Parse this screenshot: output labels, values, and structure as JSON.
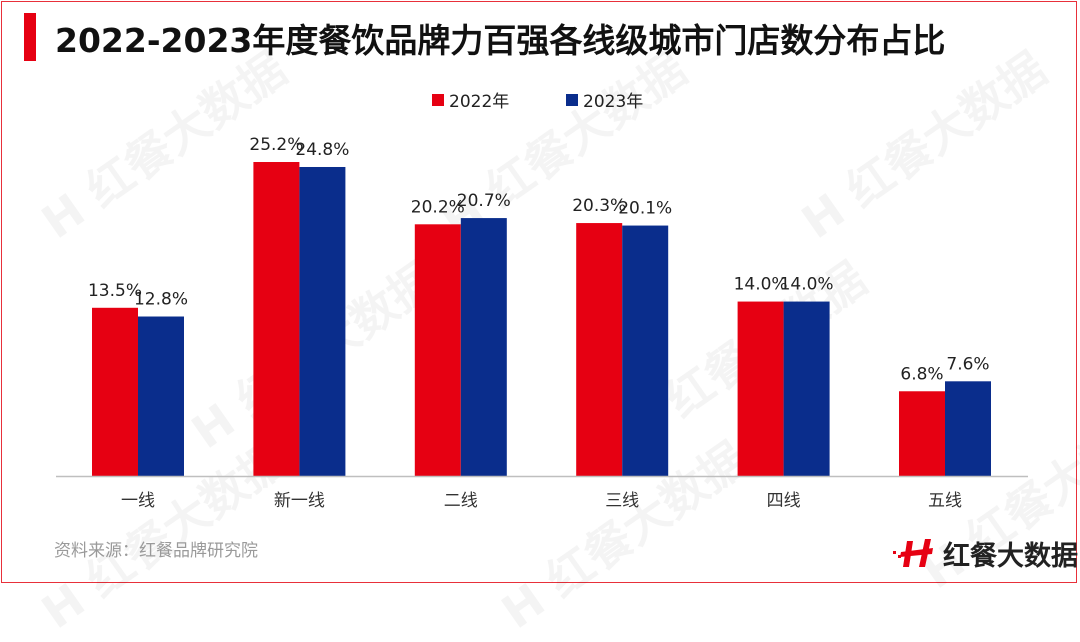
{
  "chart_data": {
    "type": "bar",
    "title": "2022-2023年度餐饮品牌力百强各线级城市门店数分布占比",
    "categories": [
      "一线",
      "新一线",
      "二线",
      "三线",
      "四线",
      "五线"
    ],
    "series": [
      {
        "name": "2022年",
        "color": "#e60012",
        "values": [
          13.5,
          25.2,
          20.2,
          20.3,
          14.0,
          6.8
        ],
        "labels": [
          "13.5%",
          "25.2%",
          "20.2%",
          "20.3%",
          "14.0%",
          "6.8%"
        ]
      },
      {
        "name": "2023年",
        "color": "#0a2d8c",
        "values": [
          12.8,
          24.8,
          20.7,
          20.1,
          14.0,
          7.6
        ],
        "labels": [
          "12.8%",
          "24.8%",
          "20.7%",
          "20.1%",
          "14.0%",
          "7.6%"
        ]
      }
    ],
    "unit": "%",
    "ylim": [
      0,
      30
    ],
    "grid": false,
    "legend": "top-center",
    "xlabel": "",
    "ylabel": ""
  },
  "source": "资料来源：红餐品牌研究院",
  "logo_text": "红餐大数据",
  "watermark": "红餐大数据"
}
